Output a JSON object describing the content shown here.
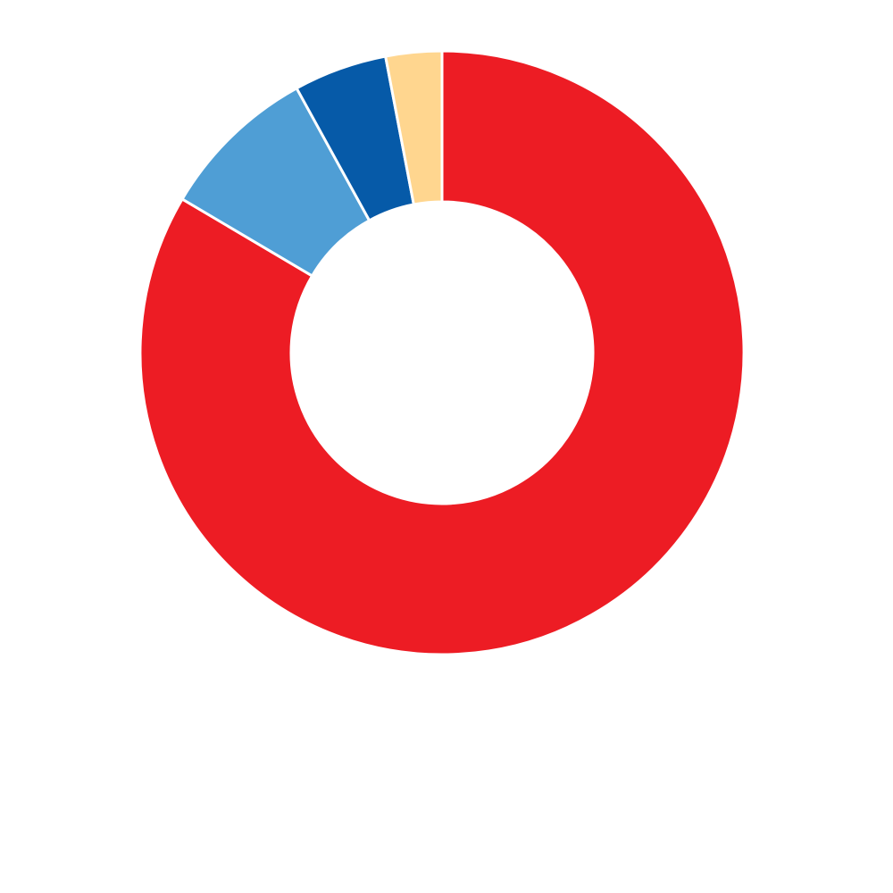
{
  "chart_data": {
    "type": "pie",
    "variant": "donut",
    "title": "",
    "legend": "none",
    "start_angle": "12 o'clock",
    "direction": "clockwise",
    "slices": [
      {
        "value": 83.5,
        "color": "#ED1C24"
      },
      {
        "value": 8.5,
        "color": "#4F9ED5"
      },
      {
        "value": 5.0,
        "color": "#065AA8"
      },
      {
        "value": 3.0,
        "color": "#FFD68F"
      }
    ]
  }
}
